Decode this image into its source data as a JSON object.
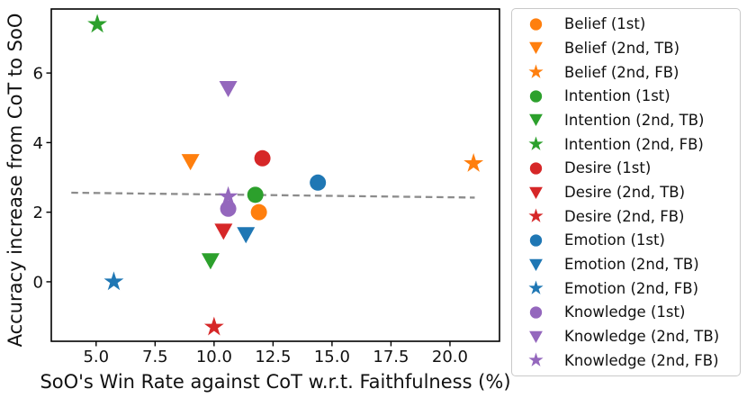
{
  "chart_data": {
    "type": "scatter",
    "title": "",
    "xlabel": "SoO's Win Rate against CoT w.r.t. Faithfulness (%)",
    "ylabel": "Accuracy increase from CoT to SoO",
    "xlim": [
      3.1,
      22.1
    ],
    "ylim": [
      -1.71,
      7.84
    ],
    "xticks": [
      5.0,
      7.5,
      10.0,
      12.5,
      15.0,
      17.5,
      20.0
    ],
    "xtick_labels": [
      "5.0",
      "7.5",
      "10.0",
      "12.5",
      "15.0",
      "17.5",
      "20.0"
    ],
    "yticks": [
      0,
      2,
      4,
      6
    ],
    "ytick_labels": [
      "0",
      "2",
      "4",
      "6"
    ],
    "grid": false,
    "legend_position": "outside-right",
    "series": [
      {
        "name": "Belief (1st)",
        "marker": "circle",
        "color": "#ff7f0e",
        "points": [
          [
            11.9,
            2.0
          ]
        ]
      },
      {
        "name": "Belief (2nd, TB)",
        "marker": "triangle-down",
        "color": "#ff7f0e",
        "points": [
          [
            9.0,
            3.45
          ]
        ]
      },
      {
        "name": "Belief (2nd, FB)",
        "marker": "star",
        "color": "#ff7f0e",
        "points": [
          [
            21.0,
            3.4
          ]
        ]
      },
      {
        "name": "Intention (1st)",
        "marker": "circle",
        "color": "#2ca02c",
        "points": [
          [
            11.75,
            2.5
          ]
        ]
      },
      {
        "name": "Intention (2nd, TB)",
        "marker": "triangle-down",
        "color": "#2ca02c",
        "points": [
          [
            9.85,
            0.6
          ]
        ]
      },
      {
        "name": "Intention (2nd, FB)",
        "marker": "star",
        "color": "#2ca02c",
        "points": [
          [
            5.05,
            7.4
          ]
        ]
      },
      {
        "name": "Desire (1st)",
        "marker": "circle",
        "color": "#d62728",
        "points": [
          [
            12.05,
            3.55
          ]
        ]
      },
      {
        "name": "Desire (2nd, TB)",
        "marker": "triangle-down",
        "color": "#d62728",
        "points": [
          [
            10.4,
            1.45
          ]
        ]
      },
      {
        "name": "Desire (2nd, FB)",
        "marker": "star",
        "color": "#d62728",
        "points": [
          [
            10.0,
            -1.3
          ]
        ]
      },
      {
        "name": "Emotion (1st)",
        "marker": "circle",
        "color": "#1f77b4",
        "points": [
          [
            14.4,
            2.85
          ]
        ]
      },
      {
        "name": "Emotion (2nd, TB)",
        "marker": "triangle-down",
        "color": "#1f77b4",
        "points": [
          [
            11.35,
            1.35
          ]
        ]
      },
      {
        "name": "Emotion (2nd, FB)",
        "marker": "star",
        "color": "#1f77b4",
        "points": [
          [
            5.75,
            0.0
          ]
        ]
      },
      {
        "name": "Knowledge (1st)",
        "marker": "circle",
        "color": "#9467bd",
        "points": [
          [
            10.6,
            2.1
          ]
        ]
      },
      {
        "name": "Knowledge (2nd, TB)",
        "marker": "triangle-down",
        "color": "#9467bd",
        "points": [
          [
            10.6,
            5.55
          ]
        ]
      },
      {
        "name": "Knowledge (2nd, FB)",
        "marker": "star",
        "color": "#9467bd",
        "points": [
          [
            10.6,
            2.45
          ]
        ]
      }
    ],
    "trend_line": {
      "x1": 3.95,
      "y1": 2.56,
      "x2": 21.05,
      "y2": 2.42,
      "style": "dashed",
      "color": "#8c8c8c"
    },
    "axis_color": "#000000"
  }
}
